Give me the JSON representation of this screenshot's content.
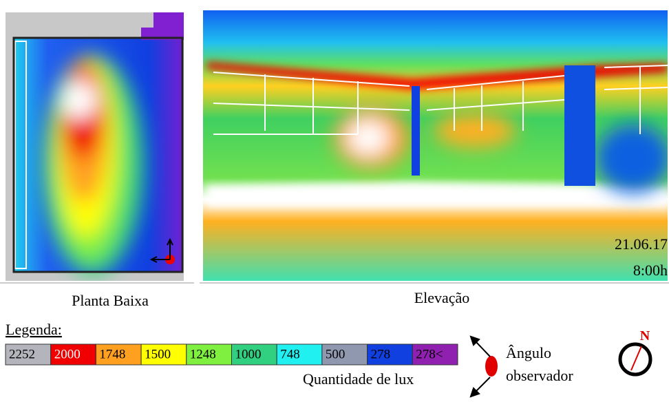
{
  "figure": {
    "captions": {
      "plan": "Planta Baixa",
      "elevation": "Elevação"
    },
    "stamp": {
      "date": "21.06.17",
      "time": "8:00h"
    },
    "legend": {
      "title": "Legenda:",
      "items": [
        {
          "label": "2252",
          "color": "#b4b4bc"
        },
        {
          "label": "2000",
          "color": "#f00000"
        },
        {
          "label": "1748",
          "color": "#ffa020"
        },
        {
          "label": "1500",
          "color": "#ffff00"
        },
        {
          "label": "1248",
          "color": "#80f040"
        },
        {
          "label": "1000",
          "color": "#30d080"
        },
        {
          "label": "748",
          "color": "#20f0f0"
        },
        {
          "label": "500",
          "color": "#9098b0"
        },
        {
          "label": "278",
          "color": "#1040e0"
        },
        {
          "label": "278<",
          "color": "#9020b0"
        }
      ],
      "unit": "Quantidade de lux"
    },
    "observer": {
      "line1": "Ângulo",
      "line2": "observador"
    },
    "north": "N"
  }
}
